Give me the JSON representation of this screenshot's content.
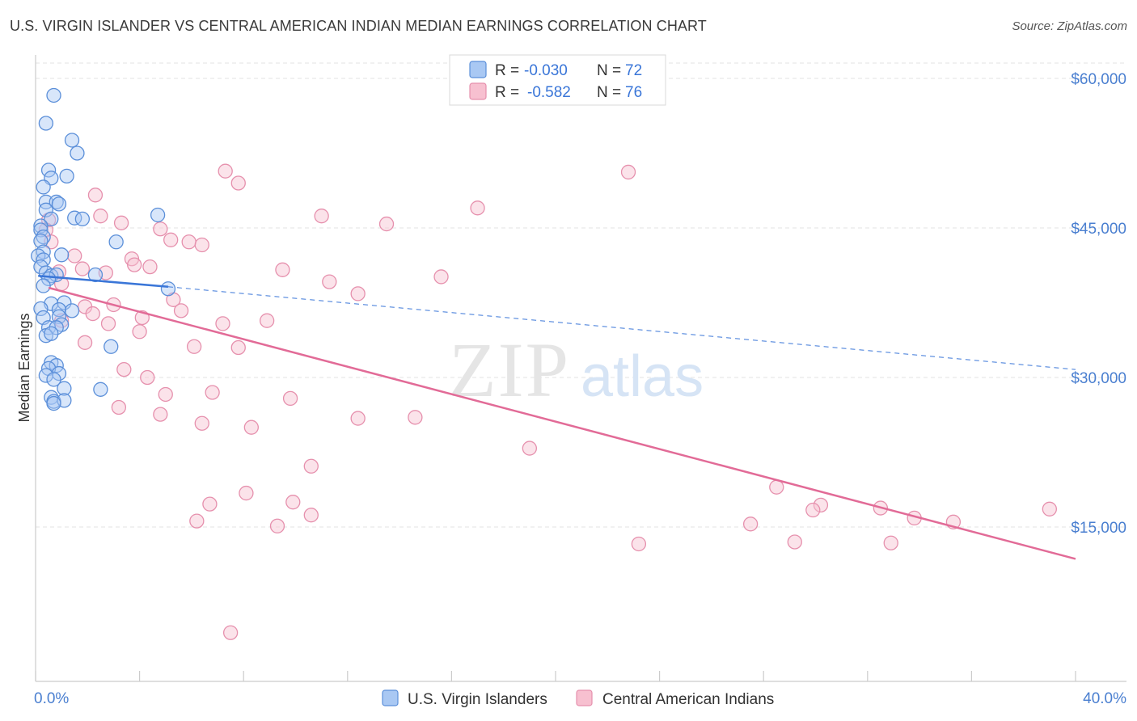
{
  "title": "U.S. VIRGIN ISLANDER VS CENTRAL AMERICAN INDIAN MEDIAN EARNINGS CORRELATION CHART",
  "source": "Source: ZipAtlas.com",
  "watermark": {
    "zip": "ZIP",
    "atlas": "atlas"
  },
  "colors": {
    "blue_fill": "#a9c8f3",
    "blue_stroke": "#5b8fd9",
    "blue_line": "#3a76d8",
    "pink_fill": "#f7c0d0",
    "pink_stroke": "#e690ad",
    "pink_line": "#e26b97",
    "axis_label": "#4a7fd0",
    "grid": "#e3e3e3"
  },
  "legend": {
    "entries": [
      {
        "r_label": "R =",
        "r_value": "-0.030",
        "n_label": "N =",
        "n_value": "72",
        "color": "blue"
      },
      {
        "r_label": "R =",
        "r_value": "-0.582",
        "n_label": "N =",
        "n_value": "76",
        "color": "pink"
      }
    ]
  },
  "chart_data": {
    "type": "scatter",
    "xlabel": "",
    "ylabel": "Median Earnings",
    "xlim": [
      0,
      40
    ],
    "ylim": [
      0,
      64000
    ],
    "x_tick_labels": [
      "0.0%",
      "40.0%"
    ],
    "y_ticks": [
      15000,
      30000,
      45000,
      60000
    ],
    "y_tick_labels": [
      "$15,000",
      "$30,000",
      "$45,000",
      "$60,000"
    ],
    "grid": true,
    "legend_position": "bottom-center",
    "series": [
      {
        "name": "U.S. Virgin Islanders",
        "color": "blue",
        "trend": {
          "x": [
            0.1,
            5.1
          ],
          "y": [
            40200,
            39100
          ],
          "extended_to_x": 40.0,
          "extended_y": 30800
        },
        "points": [
          [
            0.7,
            58300
          ],
          [
            0.4,
            55500
          ],
          [
            1.4,
            53800
          ],
          [
            1.6,
            52500
          ],
          [
            0.5,
            50800
          ],
          [
            0.6,
            50000
          ],
          [
            1.2,
            50200
          ],
          [
            0.3,
            49100
          ],
          [
            0.4,
            47600
          ],
          [
            0.8,
            47600
          ],
          [
            0.9,
            47400
          ],
          [
            0.4,
            46800
          ],
          [
            1.5,
            46000
          ],
          [
            1.8,
            45900
          ],
          [
            0.6,
            45900
          ],
          [
            4.7,
            46300
          ],
          [
            0.2,
            45200
          ],
          [
            0.2,
            44800
          ],
          [
            0.3,
            44100
          ],
          [
            0.2,
            43700
          ],
          [
            3.1,
            43600
          ],
          [
            0.3,
            42600
          ],
          [
            0.1,
            42200
          ],
          [
            1.0,
            42300
          ],
          [
            0.3,
            41800
          ],
          [
            0.2,
            41100
          ],
          [
            0.4,
            40500
          ],
          [
            0.6,
            40200
          ],
          [
            0.8,
            40300
          ],
          [
            2.3,
            40300
          ],
          [
            0.5,
            39900
          ],
          [
            0.3,
            39200
          ],
          [
            5.1,
            38900
          ],
          [
            0.6,
            37400
          ],
          [
            1.1,
            37500
          ],
          [
            0.2,
            36900
          ],
          [
            0.9,
            36800
          ],
          [
            1.4,
            36700
          ],
          [
            0.9,
            36100
          ],
          [
            0.3,
            36000
          ],
          [
            1.0,
            35300
          ],
          [
            0.5,
            35000
          ],
          [
            0.8,
            35000
          ],
          [
            0.4,
            34200
          ],
          [
            0.6,
            34400
          ],
          [
            2.9,
            33100
          ],
          [
            0.6,
            31500
          ],
          [
            0.8,
            31200
          ],
          [
            0.5,
            30900
          ],
          [
            0.9,
            30400
          ],
          [
            0.4,
            30200
          ],
          [
            0.7,
            29800
          ],
          [
            1.1,
            28900
          ],
          [
            2.5,
            28800
          ],
          [
            0.6,
            28000
          ],
          [
            0.7,
            27600
          ],
          [
            1.1,
            27700
          ],
          [
            0.7,
            27400
          ]
        ]
      },
      {
        "name": "Central American Indians",
        "color": "pink",
        "trend": {
          "x": [
            0.5,
            40.0
          ],
          "y": [
            39000,
            11800
          ]
        },
        "points": [
          [
            7.3,
            50700
          ],
          [
            22.8,
            50600
          ],
          [
            7.8,
            49500
          ],
          [
            2.3,
            48300
          ],
          [
            17.0,
            47000
          ],
          [
            11.0,
            46200
          ],
          [
            2.5,
            46200
          ],
          [
            0.5,
            45800
          ],
          [
            3.3,
            45500
          ],
          [
            13.5,
            45400
          ],
          [
            0.4,
            44800
          ],
          [
            4.8,
            44900
          ],
          [
            5.2,
            43800
          ],
          [
            5.9,
            43600
          ],
          [
            6.4,
            43300
          ],
          [
            0.6,
            43600
          ],
          [
            1.5,
            42200
          ],
          [
            3.7,
            41900
          ],
          [
            3.8,
            41300
          ],
          [
            4.4,
            41100
          ],
          [
            9.5,
            40800
          ],
          [
            1.8,
            40900
          ],
          [
            0.9,
            40600
          ],
          [
            2.7,
            40500
          ],
          [
            15.6,
            40100
          ],
          [
            11.3,
            39600
          ],
          [
            1.0,
            39400
          ],
          [
            12.4,
            38400
          ],
          [
            5.3,
            37800
          ],
          [
            3.0,
            37300
          ],
          [
            1.9,
            37100
          ],
          [
            2.2,
            36400
          ],
          [
            5.6,
            36700
          ],
          [
            4.1,
            36000
          ],
          [
            8.9,
            35700
          ],
          [
            7.2,
            35400
          ],
          [
            2.8,
            35400
          ],
          [
            1.0,
            35700
          ],
          [
            4.0,
            34600
          ],
          [
            1.9,
            33500
          ],
          [
            6.1,
            33100
          ],
          [
            7.8,
            33000
          ],
          [
            3.4,
            30800
          ],
          [
            4.3,
            30000
          ],
          [
            6.8,
            28500
          ],
          [
            5.0,
            28300
          ],
          [
            9.8,
            27900
          ],
          [
            3.2,
            27000
          ],
          [
            4.8,
            26300
          ],
          [
            12.4,
            25900
          ],
          [
            14.6,
            26000
          ],
          [
            6.4,
            25400
          ],
          [
            8.3,
            25000
          ],
          [
            19.0,
            22900
          ],
          [
            10.6,
            21100
          ],
          [
            28.5,
            19000
          ],
          [
            8.1,
            18400
          ],
          [
            9.9,
            17500
          ],
          [
            6.7,
            17300
          ],
          [
            30.2,
            17200
          ],
          [
            32.5,
            16900
          ],
          [
            29.9,
            16700
          ],
          [
            39.0,
            16800
          ],
          [
            10.6,
            16200
          ],
          [
            33.8,
            15900
          ],
          [
            35.3,
            15500
          ],
          [
            6.2,
            15600
          ],
          [
            9.3,
            15100
          ],
          [
            27.5,
            15300
          ],
          [
            23.2,
            13300
          ],
          [
            29.2,
            13500
          ],
          [
            32.9,
            13400
          ],
          [
            7.5,
            4400
          ]
        ]
      }
    ]
  }
}
